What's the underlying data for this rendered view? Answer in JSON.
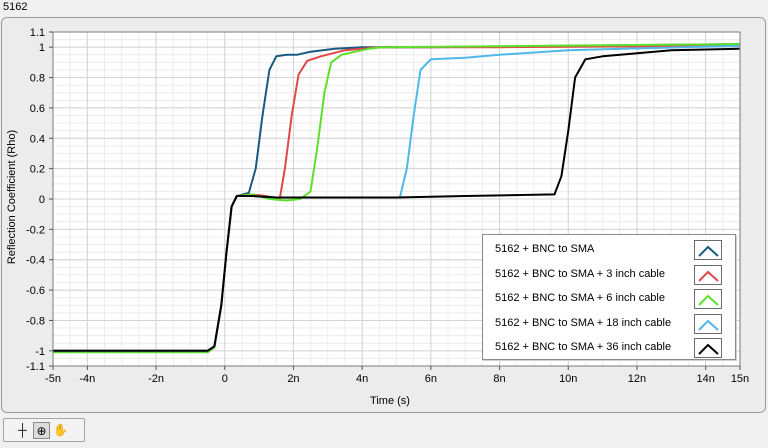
{
  "window": {
    "caption": "5162"
  },
  "chart_data": {
    "type": "line",
    "title": "",
    "xlabel": "Time (s)",
    "ylabel": "Reflection Coefficient (Rho)",
    "xlim": [
      -5e-09,
      1.5e-08
    ],
    "ylim": [
      -1.1,
      1.1
    ],
    "x_ticks": [
      {
        "v": -5e-09,
        "label": "-5n"
      },
      {
        "v": -4e-09,
        "label": "-4n"
      },
      {
        "v": -2e-09,
        "label": "-2n"
      },
      {
        "v": 0,
        "label": "0"
      },
      {
        "v": 2e-09,
        "label": "2n"
      },
      {
        "v": 4e-09,
        "label": "4n"
      },
      {
        "v": 6e-09,
        "label": "6n"
      },
      {
        "v": 8e-09,
        "label": "8n"
      },
      {
        "v": 1e-08,
        "label": "10n"
      },
      {
        "v": 1.2e-08,
        "label": "12n"
      },
      {
        "v": 1.4e-08,
        "label": "14n"
      },
      {
        "v": 1.5e-08,
        "label": "15n"
      }
    ],
    "y_ticks": [
      {
        "v": 1.1,
        "label": "1.1"
      },
      {
        "v": 1,
        "label": "1"
      },
      {
        "v": 0.8,
        "label": "0.8"
      },
      {
        "v": 0.6,
        "label": "0.6"
      },
      {
        "v": 0.4,
        "label": "0.4"
      },
      {
        "v": 0.2,
        "label": "0.2"
      },
      {
        "v": 0,
        "label": "0"
      },
      {
        "v": -0.2,
        "label": "-0.2"
      },
      {
        "v": -0.4,
        "label": "-0.4"
      },
      {
        "v": -0.6,
        "label": "-0.6"
      },
      {
        "v": -0.8,
        "label": "-0.8"
      },
      {
        "v": -1,
        "label": "-1"
      },
      {
        "v": -1.1,
        "label": "-1.1"
      }
    ],
    "grid": true,
    "legend_position": "bottom-right",
    "series": [
      {
        "name": "5162 + BNC to SMA",
        "color": "#1a5a80",
        "points": [
          [
            -5e-09,
            -1.0
          ],
          [
            -5e-10,
            -1.0
          ],
          [
            -3e-10,
            -0.97
          ],
          [
            -1e-10,
            -0.7
          ],
          [
            5e-11,
            -0.35
          ],
          [
            2e-10,
            -0.05
          ],
          [
            3.5e-10,
            0.02
          ],
          [
            7e-10,
            0.04
          ],
          [
            9e-10,
            0.2
          ],
          [
            1.1e-09,
            0.55
          ],
          [
            1.3e-09,
            0.85
          ],
          [
            1.5e-09,
            0.94
          ],
          [
            1.8e-09,
            0.95
          ],
          [
            2.1e-09,
            0.95
          ],
          [
            2.5e-09,
            0.97
          ],
          [
            3.2e-09,
            0.99
          ],
          [
            4e-09,
            1.0
          ],
          [
            6e-09,
            1.0
          ],
          [
            1e-08,
            1.01
          ],
          [
            1.5e-08,
            1.02
          ]
        ]
      },
      {
        "name": "5162 + BNC to SMA + 3 inch cable",
        "color": "#e04848",
        "points": [
          [
            -5e-09,
            -1.0
          ],
          [
            -5e-10,
            -1.0
          ],
          [
            -3e-10,
            -0.97
          ],
          [
            -1e-10,
            -0.7
          ],
          [
            5e-11,
            -0.35
          ],
          [
            2e-10,
            -0.05
          ],
          [
            3.5e-10,
            0.02
          ],
          [
            8e-10,
            0.03
          ],
          [
            1.2e-09,
            0.02
          ],
          [
            1.6e-09,
            0.0
          ],
          [
            1.75e-09,
            0.2
          ],
          [
            1.95e-09,
            0.55
          ],
          [
            2.15e-09,
            0.82
          ],
          [
            2.4e-09,
            0.91
          ],
          [
            2.8e-09,
            0.94
          ],
          [
            3.5e-09,
            0.98
          ],
          [
            4.5e-09,
            1.0
          ],
          [
            8e-09,
            1.0
          ],
          [
            1.5e-08,
            1.01
          ]
        ]
      },
      {
        "name": "5162 + BNC to SMA + 6 inch cable",
        "color": "#5ce02a",
        "points": [
          [
            -5e-09,
            -1.01
          ],
          [
            -5e-10,
            -1.01
          ],
          [
            -3e-10,
            -0.98
          ],
          [
            -1e-10,
            -0.7
          ],
          [
            5e-11,
            -0.35
          ],
          [
            2e-10,
            -0.05
          ],
          [
            3.5e-10,
            0.02
          ],
          [
            8e-10,
            0.03
          ],
          [
            1.3e-09,
            0.0
          ],
          [
            1.8e-09,
            -0.01
          ],
          [
            2.2e-09,
            0.0
          ],
          [
            2.5e-09,
            0.05
          ],
          [
            2.7e-09,
            0.35
          ],
          [
            2.9e-09,
            0.7
          ],
          [
            3.1e-09,
            0.9
          ],
          [
            3.4e-09,
            0.95
          ],
          [
            3.8e-09,
            0.97
          ],
          [
            4.2e-09,
            0.99
          ],
          [
            4.6e-09,
            1.0
          ],
          [
            1.5e-08,
            1.02
          ]
        ]
      },
      {
        "name": "5162 + BNC to SMA + 18 inch cable",
        "color": "#4fb8e8",
        "points": [
          [
            -5e-09,
            -1.0
          ],
          [
            -5e-10,
            -1.0
          ],
          [
            -3e-10,
            -0.97
          ],
          [
            -1e-10,
            -0.7
          ],
          [
            5e-11,
            -0.35
          ],
          [
            2e-10,
            -0.05
          ],
          [
            3.5e-10,
            0.02
          ],
          [
            8e-10,
            0.02
          ],
          [
            1.5e-09,
            0.01
          ],
          [
            2.5e-09,
            0.01
          ],
          [
            4e-09,
            0.01
          ],
          [
            5.1e-09,
            0.01
          ],
          [
            5.3e-09,
            0.2
          ],
          [
            5.5e-09,
            0.55
          ],
          [
            5.7e-09,
            0.85
          ],
          [
            6e-09,
            0.92
          ],
          [
            7e-09,
            0.93
          ],
          [
            8e-09,
            0.95
          ],
          [
            1e-08,
            0.98
          ],
          [
            1.5e-08,
            1.01
          ]
        ]
      },
      {
        "name": "5162 + BNC to SMA + 36 inch cable",
        "color": "#000000",
        "points": [
          [
            -5e-09,
            -1.0
          ],
          [
            -5e-10,
            -1.0
          ],
          [
            -3e-10,
            -0.97
          ],
          [
            -1e-10,
            -0.7
          ],
          [
            5e-11,
            -0.35
          ],
          [
            2e-10,
            -0.05
          ],
          [
            3.5e-10,
            0.02
          ],
          [
            8e-10,
            0.02
          ],
          [
            1.5e-09,
            0.01
          ],
          [
            3e-09,
            0.01
          ],
          [
            5e-09,
            0.01
          ],
          [
            7e-09,
            0.02
          ],
          [
            9.6e-09,
            0.03
          ],
          [
            9.8e-09,
            0.15
          ],
          [
            1e-08,
            0.45
          ],
          [
            1.02e-08,
            0.8
          ],
          [
            1.05e-08,
            0.92
          ],
          [
            1.1e-08,
            0.94
          ],
          [
            1.2e-08,
            0.96
          ],
          [
            1.3e-08,
            0.98
          ],
          [
            1.5e-08,
            0.99
          ]
        ]
      }
    ]
  },
  "toolbar": {
    "tools": [
      {
        "icon": "cursor-move-icon",
        "glyph": "┼"
      },
      {
        "icon": "zoom-icon",
        "glyph": "⊕"
      },
      {
        "icon": "pan-hand-icon",
        "glyph": "✋"
      }
    ]
  }
}
